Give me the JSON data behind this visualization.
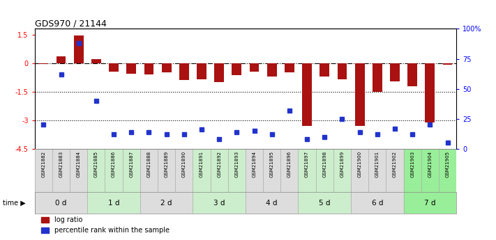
{
  "title": "GDS970 / 21144",
  "samples": [
    "GSM21882",
    "GSM21883",
    "GSM21884",
    "GSM21885",
    "GSM21886",
    "GSM21887",
    "GSM21888",
    "GSM21889",
    "GSM21890",
    "GSM21891",
    "GSM21892",
    "GSM21893",
    "GSM21894",
    "GSM21895",
    "GSM21896",
    "GSM21897",
    "GSM21898",
    "GSM21899",
    "GSM21900",
    "GSM21901",
    "GSM21902",
    "GSM21903",
    "GSM21904",
    "GSM21905"
  ],
  "log_ratio": [
    -0.05,
    0.35,
    1.45,
    0.22,
    -0.45,
    -0.55,
    -0.6,
    -0.5,
    -0.9,
    -0.85,
    -1.0,
    -0.65,
    -0.45,
    -0.7,
    -0.5,
    -3.3,
    -0.7,
    -0.85,
    -3.3,
    -1.5,
    -0.95,
    -1.2,
    -3.1,
    -0.07
  ],
  "percentile_rank": [
    20,
    62,
    88,
    40,
    12,
    14,
    14,
    12,
    12,
    16,
    8,
    14,
    15,
    12,
    32,
    8,
    10,
    25,
    14,
    12,
    17,
    12,
    20,
    5
  ],
  "groups": [
    {
      "label": "0 d",
      "start": 0,
      "end": 2,
      "color": "#dddddd"
    },
    {
      "label": "1 d",
      "start": 3,
      "end": 5,
      "color": "#cceecc"
    },
    {
      "label": "2 d",
      "start": 6,
      "end": 8,
      "color": "#dddddd"
    },
    {
      "label": "3 d",
      "start": 9,
      "end": 11,
      "color": "#cceecc"
    },
    {
      "label": "4 d",
      "start": 12,
      "end": 14,
      "color": "#dddddd"
    },
    {
      "label": "5 d",
      "start": 15,
      "end": 17,
      "color": "#cceecc"
    },
    {
      "label": "6 d",
      "start": 18,
      "end": 20,
      "color": "#dddddd"
    },
    {
      "label": "7 d",
      "start": 21,
      "end": 23,
      "color": "#99ee99"
    }
  ],
  "ylim": [
    -4.5,
    1.8
  ],
  "yticks_left": [
    1.5,
    0,
    -1.5,
    -3,
    -4.5
  ],
  "right_yticks_pct": [
    100,
    75,
    50,
    25,
    0
  ],
  "bar_color": "#aa1111",
  "dot_color": "#2233cc",
  "dotted_lines": [
    -1.5,
    -3.0
  ],
  "legend_log": "log ratio",
  "legend_pct": "percentile rank within the sample",
  "figsize": [
    7.11,
    3.45
  ],
  "dpi": 100
}
